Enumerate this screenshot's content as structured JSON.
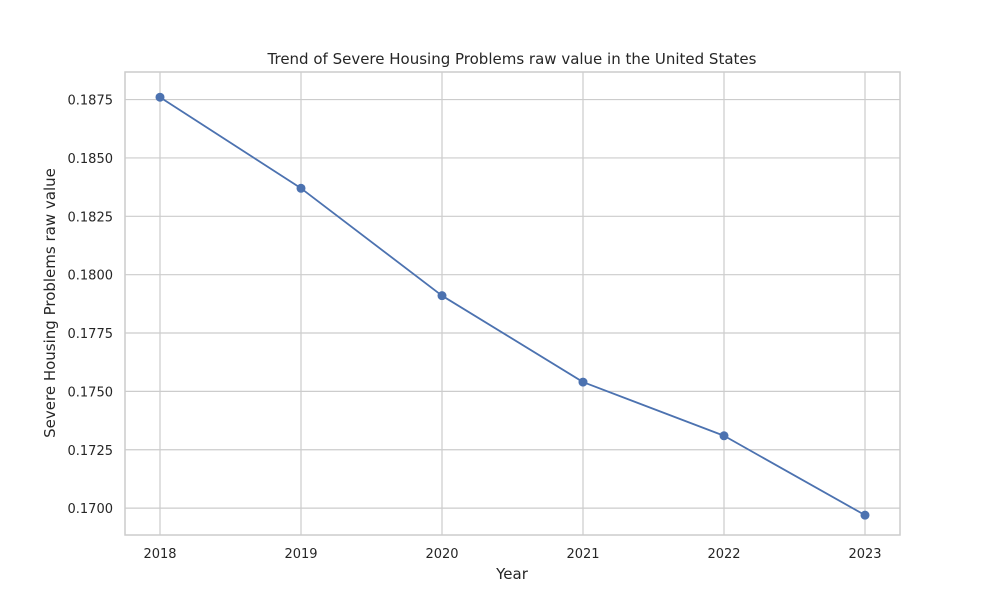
{
  "chart_data": {
    "type": "line",
    "title": "Trend of Severe Housing Problems raw value in the United States",
    "xlabel": "Year",
    "ylabel": "Severe Housing Problems raw value",
    "x": [
      "2018",
      "2019",
      "2020",
      "2021",
      "2022",
      "2023"
    ],
    "series": [
      {
        "values": [
          0.1876,
          0.1837,
          0.1791,
          0.1754,
          0.1731,
          0.1697
        ]
      }
    ],
    "ylim": [
      0.16885,
      0.18868
    ],
    "y_ticks": [
      "0.1700",
      "0.1725",
      "0.1750",
      "0.1775",
      "0.1800",
      "0.1825",
      "0.1850",
      "0.1875"
    ],
    "grid": true,
    "line_color": "#4c72b0",
    "marker_color": "#4c72b0",
    "grid_color": "#cccccc"
  }
}
